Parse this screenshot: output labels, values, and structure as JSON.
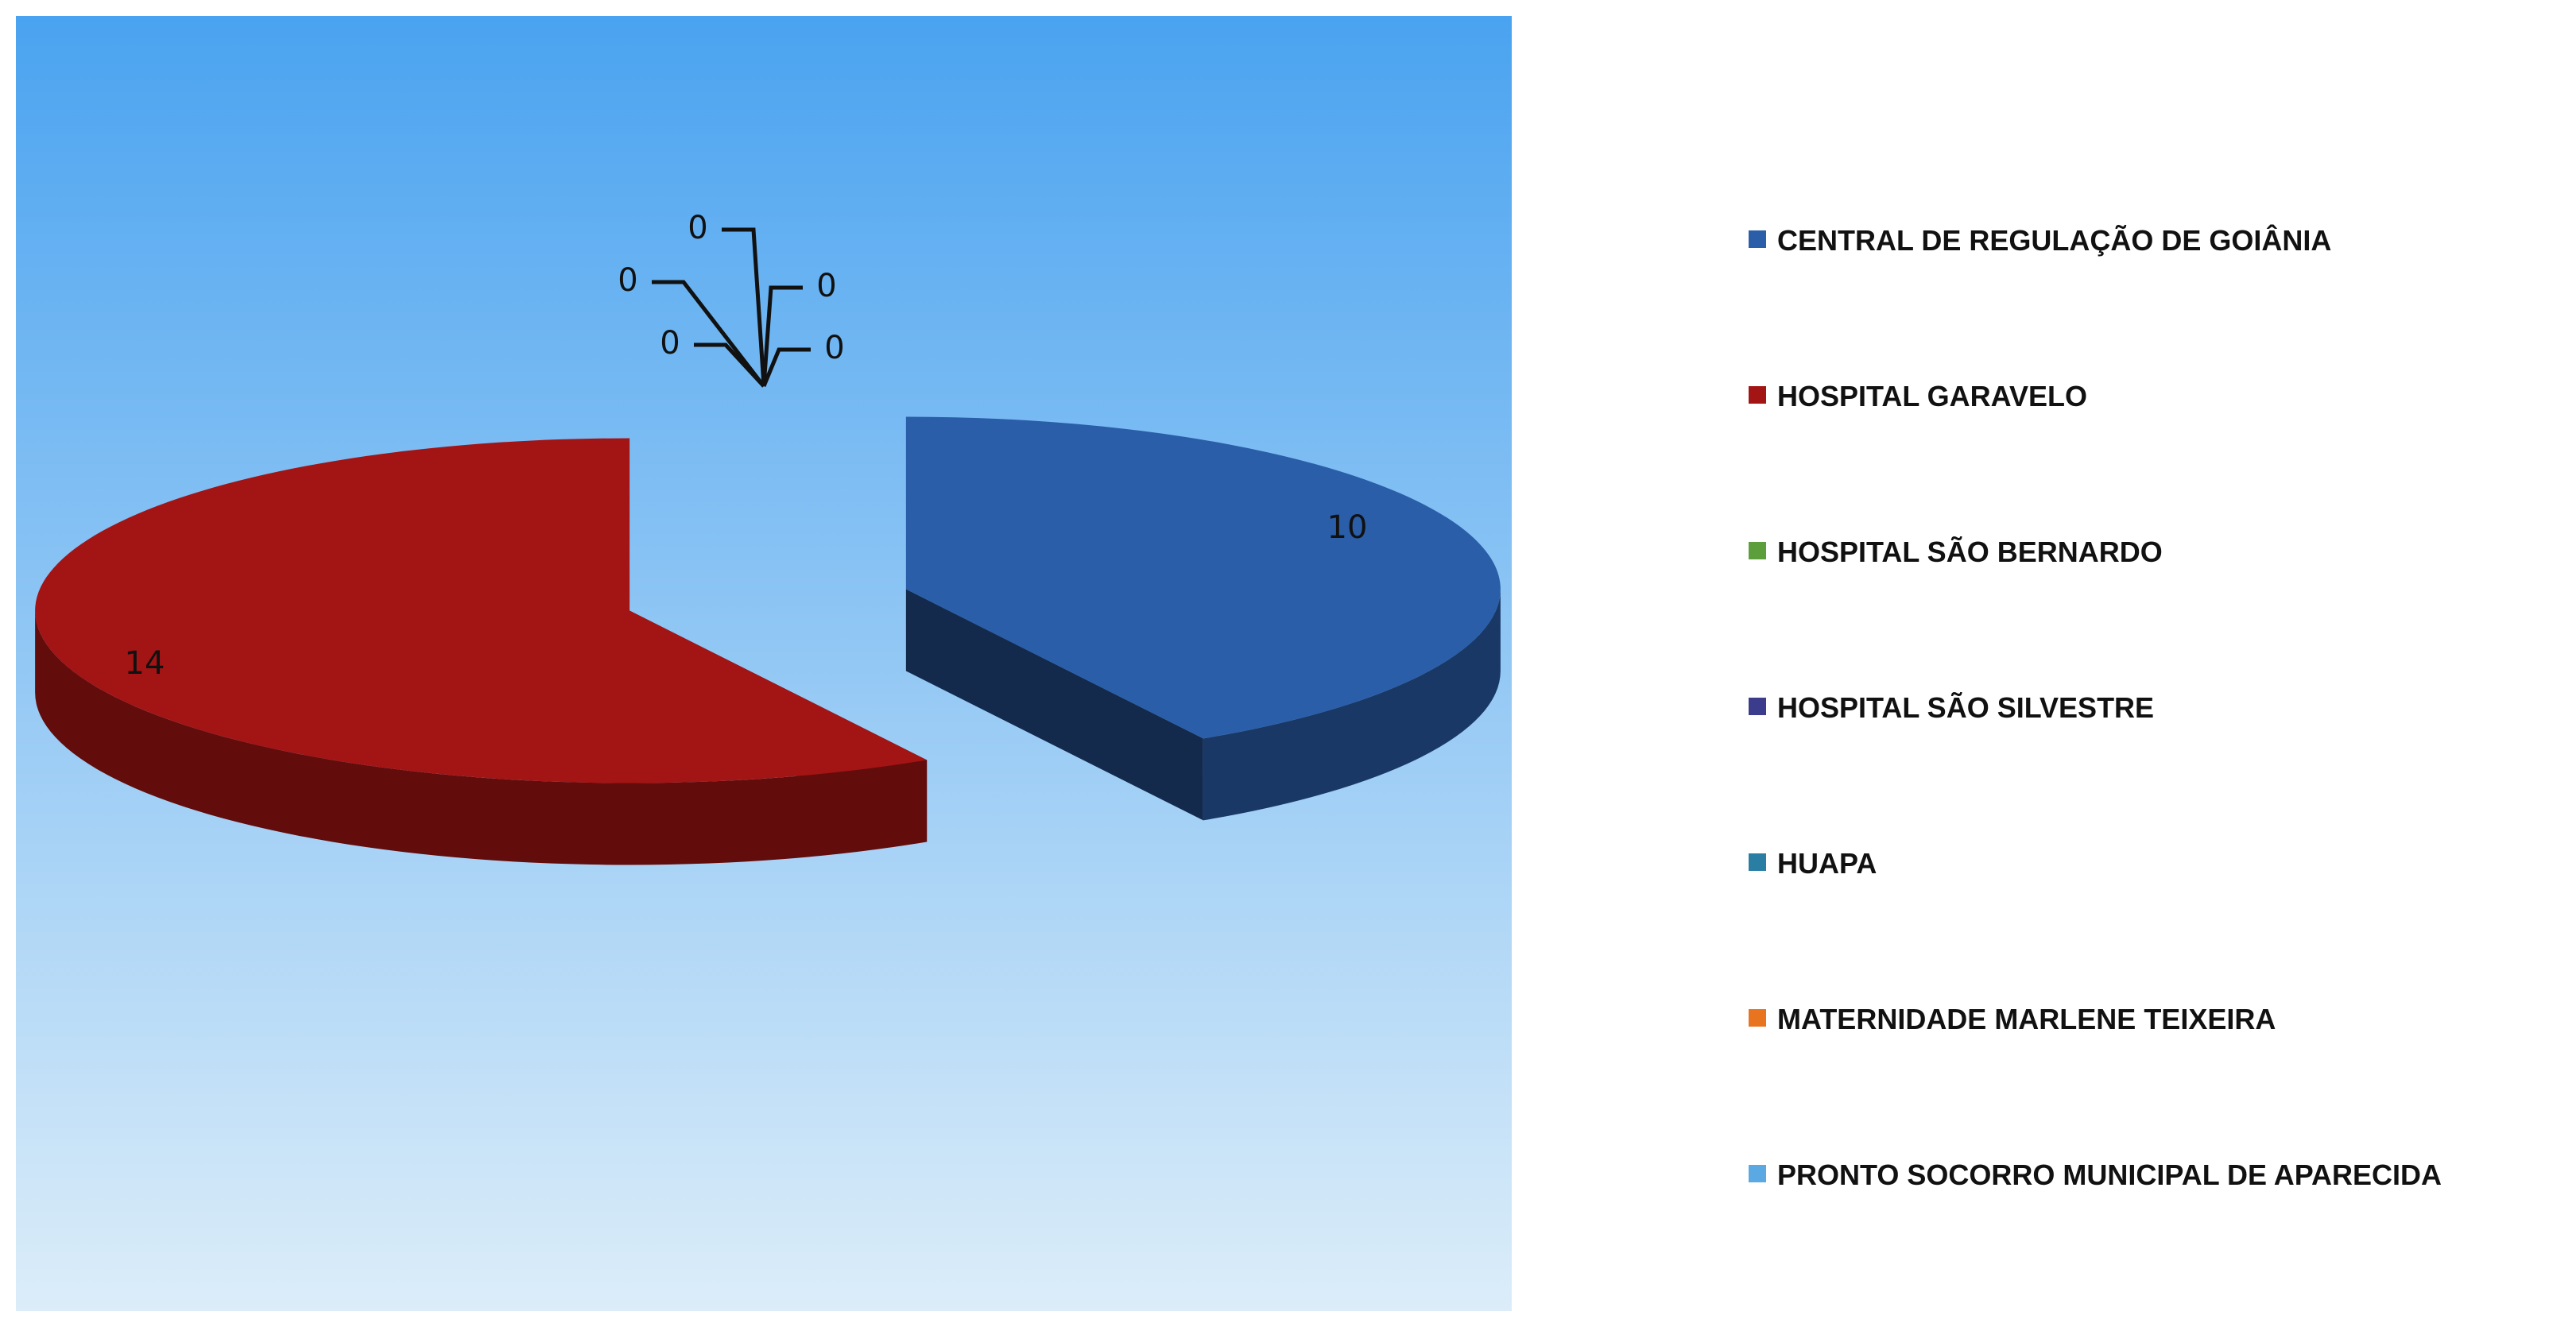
{
  "chart_data": {
    "type": "pie",
    "categories": [
      "CENTRAL DE REGULAÇÃO DE GOIÂNIA",
      "HOSPITAL GARAVELO",
      "HOSPITAL SÃO BERNARDO",
      "HOSPITAL SÃO SILVESTRE",
      "HUAPA",
      "MATERNIDADE MARLENE TEIXEIRA",
      "PRONTO SOCORRO MUNICIPAL DE APARECIDA"
    ],
    "values": [
      10,
      14,
      0,
      0,
      0,
      0,
      0
    ],
    "colors": [
      "#2a5ea8",
      "#a31414",
      "#5b9e3b",
      "#3b3c8c",
      "#2a7ea3",
      "#e8741f",
      "#5aa9e2"
    ],
    "legend": "right"
  }
}
